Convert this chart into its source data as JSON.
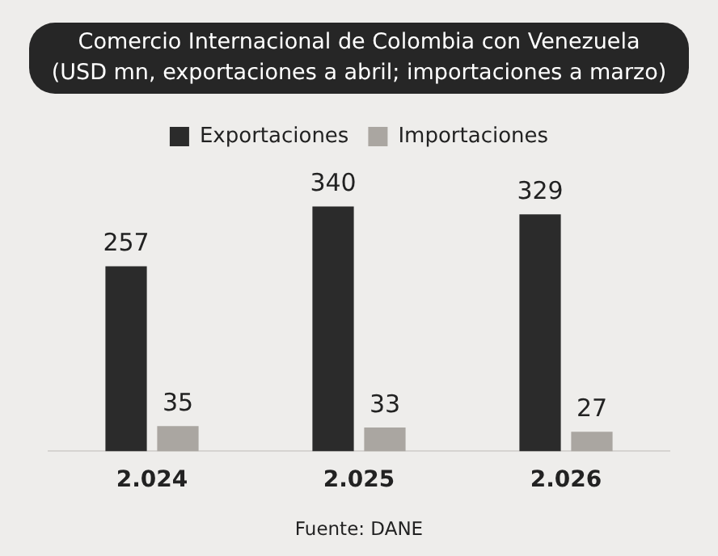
{
  "chart_data": {
    "type": "bar",
    "title": "Comercio Internacional de Colombia con Venezuela\n(USD mn, exportaciones a abril; importaciones a marzo)",
    "categories": [
      "2.024",
      "2.025",
      "2.026"
    ],
    "series": [
      {
        "name": "Exportaciones",
        "color": "#2b2b2b",
        "values": [
          257,
          340,
          329
        ]
      },
      {
        "name": "Importaciones",
        "color": "#aaa6a1",
        "values": [
          35,
          33,
          27
        ]
      }
    ],
    "data_labels": true,
    "legend": "top",
    "grid": false,
    "annotations": [
      "Fuente: DANE"
    ]
  }
}
